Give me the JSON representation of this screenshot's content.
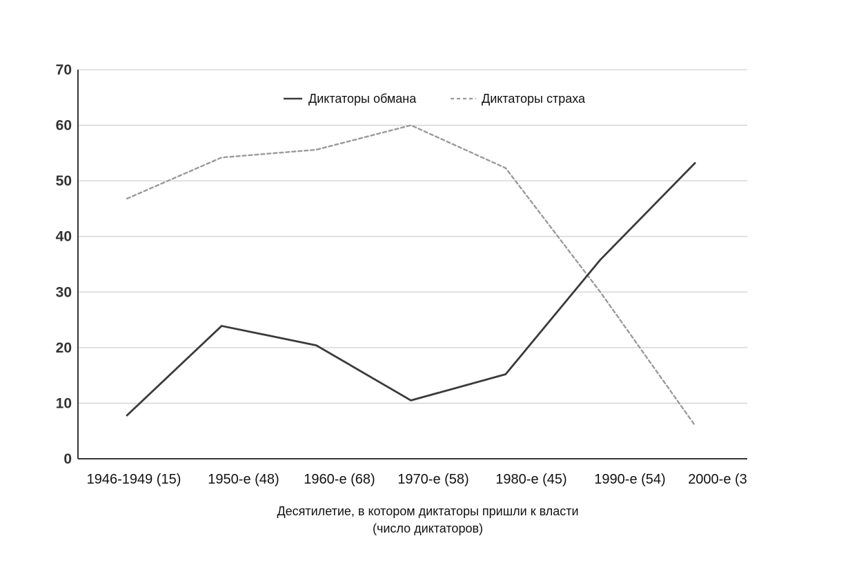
{
  "chart_data": {
    "type": "line",
    "xlabel": "Десятилетие, в котором диктаторы пришли к власти",
    "xlabel_sub": "(число диктаторов)",
    "ylabel": "",
    "ylim": [
      0,
      70
    ],
    "yticks": [
      0,
      10,
      20,
      30,
      40,
      50,
      60,
      70
    ],
    "grid": true,
    "legend_position": "top",
    "categories": [
      "1946-1949 (15)",
      "1950-е (48)",
      "1960-е (68)",
      "1970-е (58)",
      "1980-е (45)",
      "1990-е (54)",
      "2000-е (3"
    ],
    "series": [
      {
        "name": "Диктаторы обмана",
        "style": "solid",
        "color": "#3a3a3a",
        "values": [
          7.8,
          23.9,
          20.4,
          10.5,
          15.2,
          35.8,
          53.2
        ]
      },
      {
        "name": "Диктаторы страха",
        "style": "dashed",
        "color": "#9a9a9a",
        "values": [
          46.8,
          54.2,
          55.6,
          60.0,
          52.3,
          30.0,
          6.0
        ]
      }
    ]
  },
  "colors": {
    "axis": "#333333",
    "grid": "#cfcfcf",
    "series_solid": "#3a3a3a",
    "series_dashed": "#9a9a9a"
  }
}
